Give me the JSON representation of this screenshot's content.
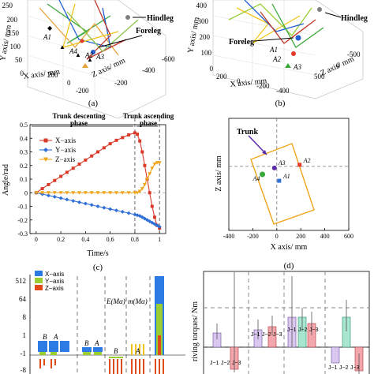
{
  "panels": {
    "a": {
      "label": "(a)",
      "y_axis_label": "Y axis/ mm",
      "x_axis_label": "X axis/ mm",
      "z_axis_label": "Z axis/ mm",
      "y_ticks": [
        "250",
        "200",
        "150",
        "100",
        "50",
        "0"
      ],
      "x_ticks": [
        "200",
        "0",
        "-200"
      ],
      "z_ticks": [
        "-600",
        "-400",
        "-200"
      ],
      "annotations": [
        "Hindleg",
        "Foreleg",
        "A1",
        "A4",
        "A2",
        "A3"
      ]
    },
    "b": {
      "label": "(b)",
      "y_axis_label": "Y axis/ mm",
      "x_axis_label": "X axis/ mm",
      "z_axis_label": "Z axis/ mm",
      "y_ticks": [
        "400",
        "300",
        "200",
        "100",
        "0"
      ],
      "x_ticks": [
        "200",
        "0",
        "-200",
        "-400"
      ],
      "z_ticks": [
        "-500",
        "0",
        "500"
      ],
      "annotations": [
        "Hindleg",
        "Foreleg",
        "A1",
        "A2",
        "A3"
      ]
    },
    "c": {
      "label": "(c)",
      "phase_left": [
        "Trunk descenting",
        "phase"
      ],
      "phase_right": [
        "Trunk ascending",
        "phase"
      ]
    },
    "d": {
      "label": "(d)",
      "trunk_label": "Trunk",
      "point_labels": [
        "A1",
        "A2",
        "A3",
        "A4"
      ],
      "point_colors": [
        "#2f6fd6",
        "#e23b2a",
        "#5a2aa8",
        "#3aa83a"
      ]
    },
    "e": {
      "legend": [
        "X−axis",
        "Y−axis",
        "Z−axis"
      ],
      "legend_colors": [
        "#2c7be5",
        "#9acd32",
        "#e04b1a"
      ],
      "y_ticks": [
        "512",
        "64",
        "8",
        "1",
        "-1",
        "-8"
      ],
      "group_labels": [
        "B",
        "A",
        "B",
        "A",
        "B",
        "A"
      ],
      "col_labels": [
        "E(Mα)",
        "m(Mα)"
      ]
    },
    "f": {
      "y_axis_label": "riving torques/ Nm",
      "bar_labels": [
        "J−1",
        "J−2",
        "J−3",
        "J−1",
        "J−2",
        "J−3",
        "J−1",
        "J−2",
        "J−3",
        "J−1",
        "J−2",
        "J−3",
        "J−1",
        "J−1"
      ]
    }
  },
  "chart_data": [
    {
      "type": "line",
      "panel": "c",
      "xlabel": "Time/s",
      "ylabel": "Angle/rad",
      "xlim": [
        -0.05,
        1.05
      ],
      "ylim": [
        -0.3,
        0.5
      ],
      "x_ticks": [
        "0",
        "0.2",
        "0.4",
        "0.6",
        "0.8",
        "1"
      ],
      "y_ticks": [
        "0.5",
        "0.4",
        "0.3",
        "0.2",
        "0.1",
        "0",
        "-0.1",
        "-0.2",
        "-0.3"
      ],
      "dashed_vlines": [
        0.8,
        1.0
      ],
      "series": [
        {
          "name": "X−axis",
          "color": "#d93a2a",
          "marker": "square",
          "x": [
            0,
            0.05,
            0.1,
            0.15,
            0.2,
            0.25,
            0.3,
            0.35,
            0.4,
            0.45,
            0.5,
            0.55,
            0.6,
            0.65,
            0.7,
            0.75,
            0.8,
            0.82,
            0.84,
            0.86,
            0.88,
            0.9,
            0.92,
            0.94,
            0.96,
            0.98,
            1.0
          ],
          "y": [
            0,
            0.03,
            0.06,
            0.09,
            0.12,
            0.15,
            0.18,
            0.21,
            0.24,
            0.27,
            0.3,
            0.33,
            0.36,
            0.385,
            0.405,
            0.425,
            0.44,
            0.43,
            0.38,
            0.3,
            0.2,
            0.1,
            0.0,
            -0.1,
            -0.18,
            -0.24,
            -0.26
          ]
        },
        {
          "name": "Y−axis",
          "color": "#2f6fd6",
          "marker": "diamond",
          "x": [
            0,
            0.05,
            0.1,
            0.15,
            0.2,
            0.25,
            0.3,
            0.35,
            0.4,
            0.45,
            0.5,
            0.55,
            0.6,
            0.65,
            0.7,
            0.75,
            0.8,
            0.82,
            0.84,
            0.86,
            0.88,
            0.9,
            0.92,
            0.94,
            0.96,
            0.98,
            1.0
          ],
          "y": [
            0,
            -0.01,
            -0.02,
            -0.03,
            -0.04,
            -0.05,
            -0.06,
            -0.07,
            -0.08,
            -0.09,
            -0.1,
            -0.11,
            -0.12,
            -0.13,
            -0.14,
            -0.15,
            -0.16,
            -0.165,
            -0.17,
            -0.18,
            -0.19,
            -0.2,
            -0.21,
            -0.22,
            -0.23,
            -0.24,
            -0.25
          ]
        },
        {
          "name": "Z−axis",
          "color": "#f0a51a",
          "marker": "triangle-down",
          "x": [
            0,
            0.05,
            0.1,
            0.15,
            0.2,
            0.25,
            0.3,
            0.35,
            0.4,
            0.45,
            0.5,
            0.55,
            0.6,
            0.65,
            0.7,
            0.75,
            0.8,
            0.82,
            0.84,
            0.86,
            0.88,
            0.9,
            0.92,
            0.94,
            0.96,
            0.98,
            1.0
          ],
          "y": [
            0,
            0,
            0,
            0,
            0,
            0,
            0,
            0,
            0,
            0,
            0,
            0,
            0,
            0,
            0,
            0,
            0,
            0,
            0.01,
            0.03,
            0.06,
            0.1,
            0.14,
            0.18,
            0.21,
            0.22,
            0.22
          ]
        }
      ]
    },
    {
      "type": "scatter",
      "panel": "d",
      "xlabel": "X axis/ mm",
      "ylabel": "Z axis/ mm",
      "xlim": [
        -400,
        600
      ],
      "ylim": [
        -800,
        600
      ],
      "x_ticks": [
        "-400",
        "-200",
        "0",
        "200",
        "400",
        "600"
      ],
      "points": [
        {
          "name": "A1",
          "x": 20,
          "y": -180
        },
        {
          "name": "A2",
          "x": 190,
          "y": 20
        },
        {
          "name": "A3",
          "x": -20,
          "y": -20
        },
        {
          "name": "A4",
          "x": -120,
          "y": -100
        }
      ]
    }
  ]
}
